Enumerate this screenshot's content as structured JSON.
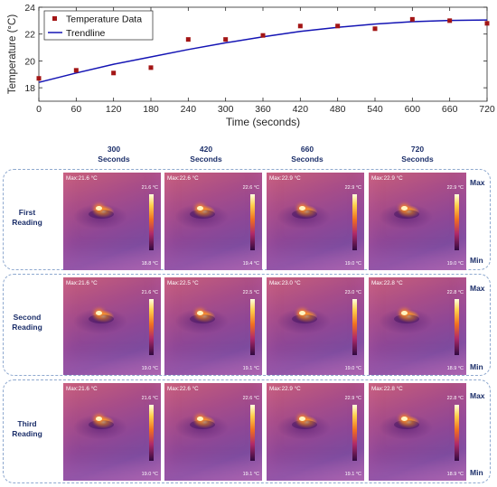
{
  "chart_data": {
    "type": "line",
    "xlabel": "Time (seconds)",
    "ylabel": "Temperature (°C)",
    "xlim": [
      0,
      720
    ],
    "ylim": [
      17,
      24
    ],
    "xticks": [
      0,
      60,
      120,
      180,
      240,
      300,
      360,
      420,
      480,
      540,
      600,
      660,
      720
    ],
    "yticks": [
      18,
      20,
      22,
      24
    ],
    "grid": false,
    "legend_position": "top-left",
    "series": [
      {
        "name": "Temperature Data",
        "kind": "scatter",
        "color": "#a31515",
        "x": [
          0,
          60,
          120,
          180,
          240,
          300,
          360,
          420,
          480,
          540,
          600,
          660,
          720
        ],
        "y": [
          18.7,
          19.3,
          19.1,
          19.5,
          21.6,
          21.6,
          21.9,
          22.6,
          22.6,
          22.4,
          23.1,
          23.0,
          22.8
        ]
      },
      {
        "name": "Trendline",
        "kind": "line",
        "color": "#1414b4",
        "x": [
          0,
          60,
          120,
          180,
          240,
          300,
          360,
          420,
          480,
          540,
          600,
          660,
          720
        ],
        "y": [
          18.4,
          19.1,
          19.75,
          20.3,
          20.85,
          21.35,
          21.8,
          22.2,
          22.5,
          22.75,
          22.92,
          23.02,
          23.05
        ]
      }
    ]
  },
  "thermal_grid": {
    "columns": [
      {
        "value": "300",
        "unit": "Seconds"
      },
      {
        "value": "420",
        "unit": "Seconds"
      },
      {
        "value": "660",
        "unit": "Seconds"
      },
      {
        "value": "720",
        "unit": "Seconds"
      }
    ],
    "rows": [
      {
        "label_line1": "First",
        "label_line2": "Reading",
        "cells": [
          {
            "max": "Max:21.6 °C",
            "hi": "21.6 °C",
            "lo": "18.8 °C"
          },
          {
            "max": "Max:22.6 °C",
            "hi": "22.6 °C",
            "lo": "19.4 °C"
          },
          {
            "max": "Max:22.9 °C",
            "hi": "22.9 °C",
            "lo": "19.0 °C"
          },
          {
            "max": "Max:22.9 °C",
            "hi": "22.9 °C",
            "lo": "19.0 °C"
          }
        ]
      },
      {
        "label_line1": "Second",
        "label_line2": "Reading",
        "cells": [
          {
            "max": "Max:21.6 °C",
            "hi": "21.6 °C",
            "lo": "19.0 °C"
          },
          {
            "max": "Max:22.5 °C",
            "hi": "22.5 °C",
            "lo": "19.1 °C"
          },
          {
            "max": "Max:23.0 °C",
            "hi": "23.0 °C",
            "lo": "19.0 °C"
          },
          {
            "max": "Max:22.8 °C",
            "hi": "22.8 °C",
            "lo": "18.9 °C"
          }
        ]
      },
      {
        "label_line1": "Third",
        "label_line2": "Reading",
        "cells": [
          {
            "max": "Max:21.6 °C",
            "hi": "21.6 °C",
            "lo": "19.0 °C"
          },
          {
            "max": "Max:22.6 °C",
            "hi": "22.6 °C",
            "lo": "19.1 °C"
          },
          {
            "max": "Max:22.9 °C",
            "hi": "22.9 °C",
            "lo": "19.1 °C"
          },
          {
            "max": "Max:22.8 °C",
            "hi": "22.8 °C",
            "lo": "18.9 °C"
          }
        ]
      }
    ],
    "scale_max_label": "Max",
    "scale_min_label": "Min",
    "label_color": "#1c2f6a"
  }
}
